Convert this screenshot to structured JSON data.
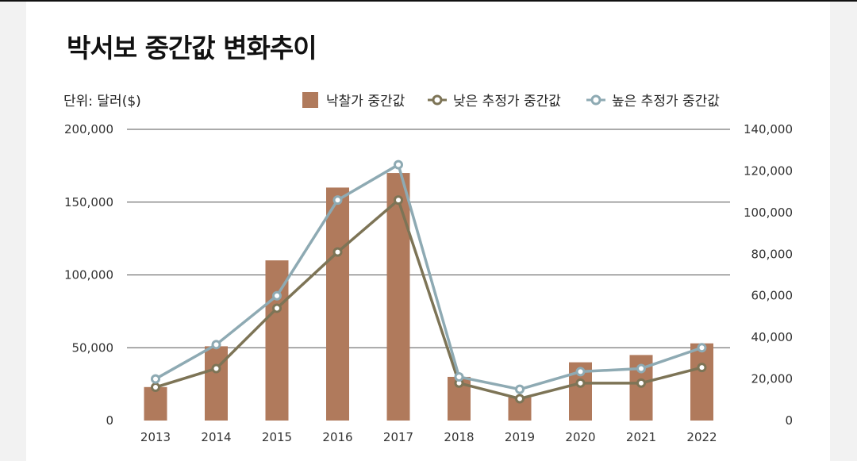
{
  "title": "박서보 중간값 변화추이",
  "unit_label": "단위: 달러($)",
  "colors": {
    "bar": "#b07a5c",
    "low_line": "#7d7456",
    "high_line": "#8eaab3",
    "grid": "#555555"
  },
  "legend": {
    "bar": "낙찰가 중간값",
    "low": "낮은 추정가 중간값",
    "high": "높은 추정가 중간값"
  },
  "chart_data": {
    "type": "bar",
    "title": "박서보 중간값 변화추이",
    "categories": [
      "2013",
      "2014",
      "2015",
      "2016",
      "2017",
      "2018",
      "2019",
      "2020",
      "2021",
      "2022"
    ],
    "left_axis": {
      "ylim": [
        0,
        200000
      ],
      "ticks": [
        0,
        50000,
        100000,
        150000,
        200000
      ],
      "tick_labels": [
        "0",
        "50,000",
        "100,000",
        "150,000",
        "200,000"
      ]
    },
    "right_axis": {
      "ylim": [
        0,
        140000
      ],
      "ticks": [
        0,
        20000,
        40000,
        60000,
        80000,
        100000,
        120000,
        140000
      ],
      "tick_labels": [
        "0",
        "20,000",
        "40,000",
        "60,000",
        "80,000",
        "100,000",
        "120,000",
        "140,000"
      ]
    },
    "series": [
      {
        "name": "낙찰가 중간값",
        "type": "bar",
        "axis": "left",
        "values": [
          23000,
          51000,
          110000,
          160000,
          170000,
          30000,
          16000,
          40000,
          45000,
          53000
        ]
      },
      {
        "name": "낮은 추정가 중간값",
        "type": "line",
        "axis": "right",
        "values": [
          16000,
          25000,
          54000,
          81000,
          106000,
          18000,
          10500,
          18000,
          18000,
          25500
        ]
      },
      {
        "name": "높은 추정가 중간값",
        "type": "line",
        "axis": "right",
        "values": [
          20000,
          36500,
          60000,
          106000,
          123000,
          21000,
          15000,
          23500,
          25000,
          35000
        ]
      }
    ]
  }
}
